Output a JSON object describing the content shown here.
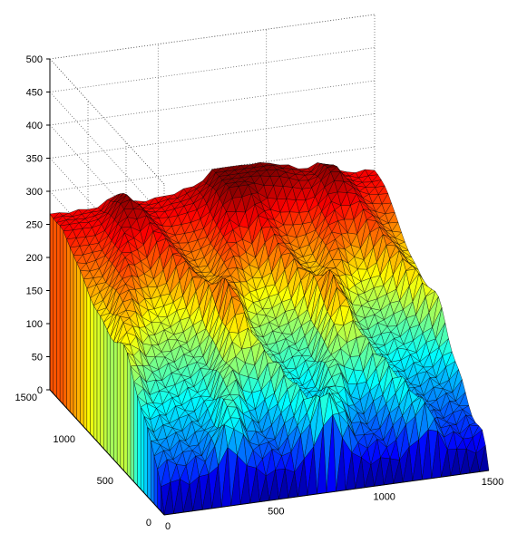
{
  "chart_data": {
    "type": "surface",
    "title": "",
    "xlabel": "",
    "ylabel": "",
    "zlabel": "",
    "xlim": [
      0,
      1500
    ],
    "ylim": [
      0,
      1500
    ],
    "zlim": [
      0,
      500
    ],
    "x_ticks": [
      0,
      500,
      1000,
      1500
    ],
    "y_ticks": [
      0,
      500,
      1000,
      1500
    ],
    "z_ticks": [
      0,
      50,
      100,
      150,
      200,
      250,
      300,
      350,
      400,
      450,
      500
    ],
    "grid": true,
    "colormap": "jet",
    "mesh": "triangulated",
    "surface": {
      "description_values": "height rises from 0 at the front corner to ~270-300 toward the back, with V-shaped ridges",
      "max_height": 300,
      "back_edge_height": 265,
      "front_corner_height": 0,
      "ridge_count": 3
    },
    "colors": {
      "low": "#00008f",
      "mid": "#7fff7f",
      "high": "#800000"
    }
  }
}
